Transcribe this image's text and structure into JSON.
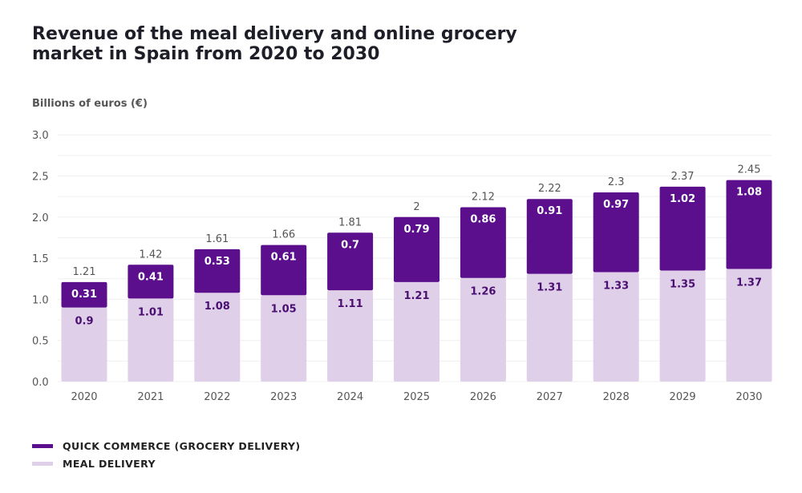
{
  "chart_data": {
    "type": "bar",
    "stacked": true,
    "title": "Revenue of the meal delivery and online grocery market in Spain from 2020 to 2030",
    "ylabel": "Billions of euros (€)",
    "xlabel": "",
    "ylim": [
      0,
      3.0
    ],
    "yticks": [
      "0.0",
      "0.5",
      "1.0",
      "1.5",
      "2.0",
      "2.5",
      "3.0"
    ],
    "grid": true,
    "legend_position": "bottom-left",
    "categories": [
      "2020",
      "2021",
      "2022",
      "2023",
      "2024",
      "2025",
      "2026",
      "2027",
      "2028",
      "2029",
      "2030"
    ],
    "series": [
      {
        "name": "MEAL DELIVERY",
        "color": "#e0cfe8",
        "values": [
          0.9,
          1.01,
          1.08,
          1.05,
          1.11,
          1.21,
          1.26,
          1.31,
          1.33,
          1.35,
          1.37
        ]
      },
      {
        "name": "QUICK COMMERCE (GROCERY DELIVERY)",
        "color": "#5b0f8c",
        "values": [
          0.31,
          0.41,
          0.53,
          0.61,
          0.7,
          0.79,
          0.86,
          0.91,
          0.97,
          1.02,
          1.08
        ]
      }
    ],
    "totals": [
      "1.21",
      "1.42",
      "1.61",
      "1.66",
      "1.81",
      "2",
      "2.12",
      "2.22",
      "2.3",
      "2.37",
      "2.45"
    ]
  }
}
